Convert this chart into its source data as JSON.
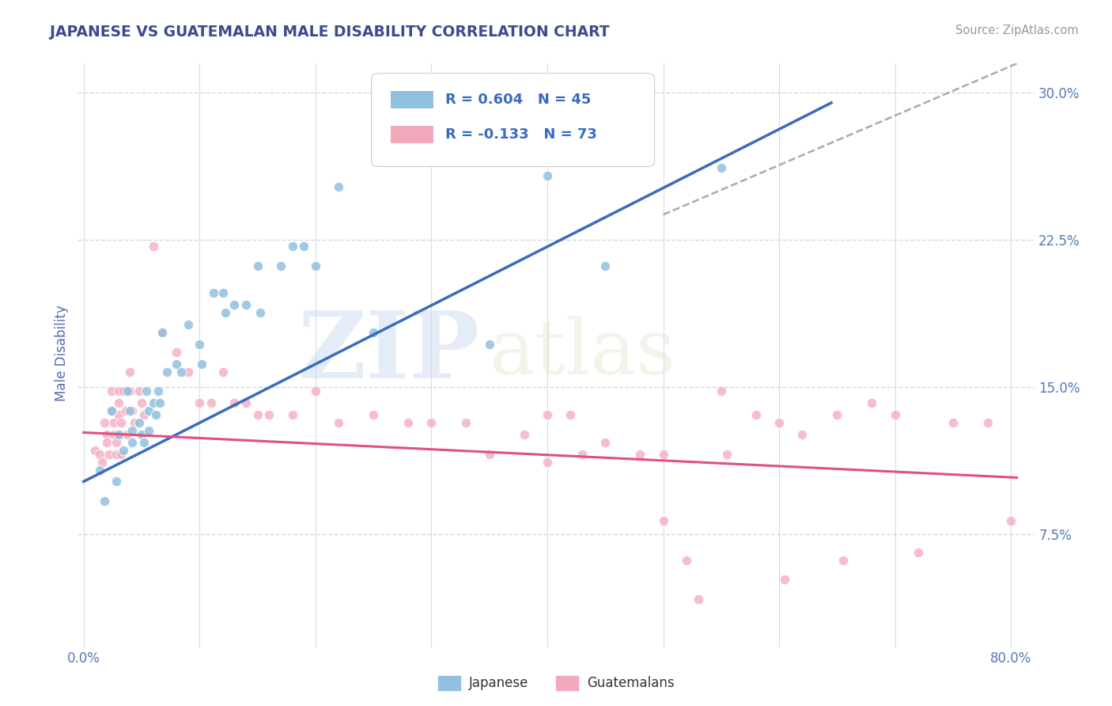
{
  "title": "JAPANESE VS GUATEMALAN MALE DISABILITY CORRELATION CHART",
  "source_text": "Source: ZipAtlas.com",
  "ylabel": "Male Disability",
  "xlim": [
    -0.005,
    0.82
  ],
  "ylim": [
    0.02,
    0.315
  ],
  "xticks": [
    0.0,
    0.1,
    0.2,
    0.3,
    0.4,
    0.5,
    0.6,
    0.7,
    0.8
  ],
  "xticklabels": [
    "0.0%",
    "",
    "",
    "",
    "",
    "",
    "",
    "",
    "80.0%"
  ],
  "yticks": [
    0.075,
    0.15,
    0.225,
    0.3
  ],
  "yticklabels": [
    "7.5%",
    "15.0%",
    "22.5%",
    "30.0%"
  ],
  "legend_r1": "R = 0.604   N = 45",
  "legend_r2": "R = -0.133   N = 73",
  "watermark_zip": "ZIP",
  "watermark_atlas": "atlas",
  "japanese_color": "#92c0e0",
  "guatemalan_color": "#f4a8bb",
  "blue_line_color": "#3a6bbf",
  "pink_line_color": "#e05080",
  "dashed_line_color": "#aaaaaa",
  "grid_color": "#d0d8e8",
  "title_color": "#3d4a8f",
  "axis_label_color": "#5b6baf",
  "tick_color": "#5577bb",
  "legend_text_color": "#3a6bbf",
  "japanese_points": [
    [
      0.014,
      0.108
    ],
    [
      0.018,
      0.092
    ],
    [
      0.024,
      0.138
    ],
    [
      0.028,
      0.102
    ],
    [
      0.03,
      0.126
    ],
    [
      0.034,
      0.118
    ],
    [
      0.038,
      0.148
    ],
    [
      0.04,
      0.138
    ],
    [
      0.042,
      0.128
    ],
    [
      0.042,
      0.122
    ],
    [
      0.048,
      0.132
    ],
    [
      0.05,
      0.126
    ],
    [
      0.052,
      0.122
    ],
    [
      0.054,
      0.148
    ],
    [
      0.056,
      0.138
    ],
    [
      0.056,
      0.128
    ],
    [
      0.06,
      0.142
    ],
    [
      0.062,
      0.136
    ],
    [
      0.064,
      0.148
    ],
    [
      0.066,
      0.142
    ],
    [
      0.068,
      0.178
    ],
    [
      0.072,
      0.158
    ],
    [
      0.08,
      0.162
    ],
    [
      0.084,
      0.158
    ],
    [
      0.09,
      0.182
    ],
    [
      0.1,
      0.172
    ],
    [
      0.102,
      0.162
    ],
    [
      0.112,
      0.198
    ],
    [
      0.12,
      0.198
    ],
    [
      0.122,
      0.188
    ],
    [
      0.13,
      0.192
    ],
    [
      0.14,
      0.192
    ],
    [
      0.15,
      0.212
    ],
    [
      0.152,
      0.188
    ],
    [
      0.17,
      0.212
    ],
    [
      0.18,
      0.222
    ],
    [
      0.19,
      0.222
    ],
    [
      0.2,
      0.212
    ],
    [
      0.22,
      0.252
    ],
    [
      0.25,
      0.178
    ],
    [
      0.3,
      0.268
    ],
    [
      0.35,
      0.172
    ],
    [
      0.4,
      0.258
    ],
    [
      0.45,
      0.212
    ],
    [
      0.55,
      0.262
    ]
  ],
  "guatemalan_points": [
    [
      0.01,
      0.118
    ],
    [
      0.014,
      0.116
    ],
    [
      0.016,
      0.112
    ],
    [
      0.018,
      0.132
    ],
    [
      0.02,
      0.126
    ],
    [
      0.02,
      0.122
    ],
    [
      0.022,
      0.116
    ],
    [
      0.024,
      0.148
    ],
    [
      0.024,
      0.138
    ],
    [
      0.026,
      0.132
    ],
    [
      0.026,
      0.126
    ],
    [
      0.028,
      0.122
    ],
    [
      0.028,
      0.116
    ],
    [
      0.03,
      0.148
    ],
    [
      0.03,
      0.142
    ],
    [
      0.03,
      0.136
    ],
    [
      0.032,
      0.132
    ],
    [
      0.032,
      0.126
    ],
    [
      0.032,
      0.116
    ],
    [
      0.034,
      0.148
    ],
    [
      0.036,
      0.138
    ],
    [
      0.038,
      0.126
    ],
    [
      0.04,
      0.158
    ],
    [
      0.04,
      0.148
    ],
    [
      0.042,
      0.138
    ],
    [
      0.044,
      0.132
    ],
    [
      0.048,
      0.148
    ],
    [
      0.05,
      0.142
    ],
    [
      0.052,
      0.136
    ],
    [
      0.06,
      0.222
    ],
    [
      0.068,
      0.178
    ],
    [
      0.08,
      0.168
    ],
    [
      0.09,
      0.158
    ],
    [
      0.1,
      0.142
    ],
    [
      0.11,
      0.142
    ],
    [
      0.12,
      0.158
    ],
    [
      0.13,
      0.142
    ],
    [
      0.14,
      0.142
    ],
    [
      0.15,
      0.136
    ],
    [
      0.16,
      0.136
    ],
    [
      0.18,
      0.136
    ],
    [
      0.2,
      0.148
    ],
    [
      0.22,
      0.132
    ],
    [
      0.25,
      0.136
    ],
    [
      0.28,
      0.132
    ],
    [
      0.3,
      0.132
    ],
    [
      0.33,
      0.132
    ],
    [
      0.35,
      0.116
    ],
    [
      0.38,
      0.126
    ],
    [
      0.4,
      0.112
    ],
    [
      0.4,
      0.136
    ],
    [
      0.42,
      0.136
    ],
    [
      0.43,
      0.116
    ],
    [
      0.45,
      0.122
    ],
    [
      0.48,
      0.116
    ],
    [
      0.5,
      0.116
    ],
    [
      0.5,
      0.082
    ],
    [
      0.52,
      0.062
    ],
    [
      0.53,
      0.042
    ],
    [
      0.55,
      0.148
    ],
    [
      0.555,
      0.116
    ],
    [
      0.58,
      0.136
    ],
    [
      0.6,
      0.132
    ],
    [
      0.605,
      0.052
    ],
    [
      0.62,
      0.126
    ],
    [
      0.65,
      0.136
    ],
    [
      0.655,
      0.062
    ],
    [
      0.68,
      0.142
    ],
    [
      0.7,
      0.136
    ],
    [
      0.72,
      0.066
    ],
    [
      0.75,
      0.132
    ],
    [
      0.78,
      0.132
    ],
    [
      0.8,
      0.082
    ]
  ],
  "blue_line_x": [
    0.0,
    0.645
  ],
  "blue_line_y": [
    0.102,
    0.295
  ],
  "dashed_line_x": [
    0.5,
    0.805
  ],
  "dashed_line_y": [
    0.238,
    0.315
  ],
  "pink_line_x": [
    0.0,
    0.805
  ],
  "pink_line_y": [
    0.127,
    0.104
  ]
}
